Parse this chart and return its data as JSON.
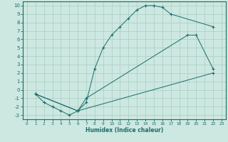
{
  "xlabel": "Humidex (Indice chaleur)",
  "bg_color": "#cce8e0",
  "line_color": "#1a6b6b",
  "grid_color": "#aaccc4",
  "xlim": [
    -0.5,
    23.5
  ],
  "ylim": [
    -3.5,
    10.5
  ],
  "xticks": [
    0,
    1,
    2,
    3,
    4,
    5,
    6,
    7,
    8,
    9,
    10,
    11,
    12,
    13,
    14,
    15,
    16,
    17,
    18,
    19,
    20,
    21,
    22,
    23
  ],
  "yticks": [
    -3,
    -2,
    -1,
    0,
    1,
    2,
    3,
    4,
    5,
    6,
    7,
    8,
    9,
    10
  ],
  "line_upper": {
    "x": [
      1,
      2,
      3,
      4,
      5,
      6,
      7,
      8,
      9,
      10,
      11,
      12,
      13,
      14,
      15,
      16,
      17,
      22
    ],
    "y": [
      -0.5,
      -1.5,
      -2.0,
      -2.5,
      -3.0,
      -2.5,
      -1.5,
      2.5,
      5.0,
      6.5,
      7.5,
      8.5,
      9.5,
      10.0,
      10.0,
      9.8,
      9.0,
      7.5
    ]
  },
  "line_middle": {
    "x": [
      1,
      6,
      7,
      19,
      20,
      22
    ],
    "y": [
      -0.5,
      -2.5,
      -1.0,
      6.5,
      6.5,
      2.5
    ]
  },
  "line_lower": {
    "x": [
      1,
      6,
      22
    ],
    "y": [
      -0.5,
      -2.5,
      2.0
    ]
  }
}
